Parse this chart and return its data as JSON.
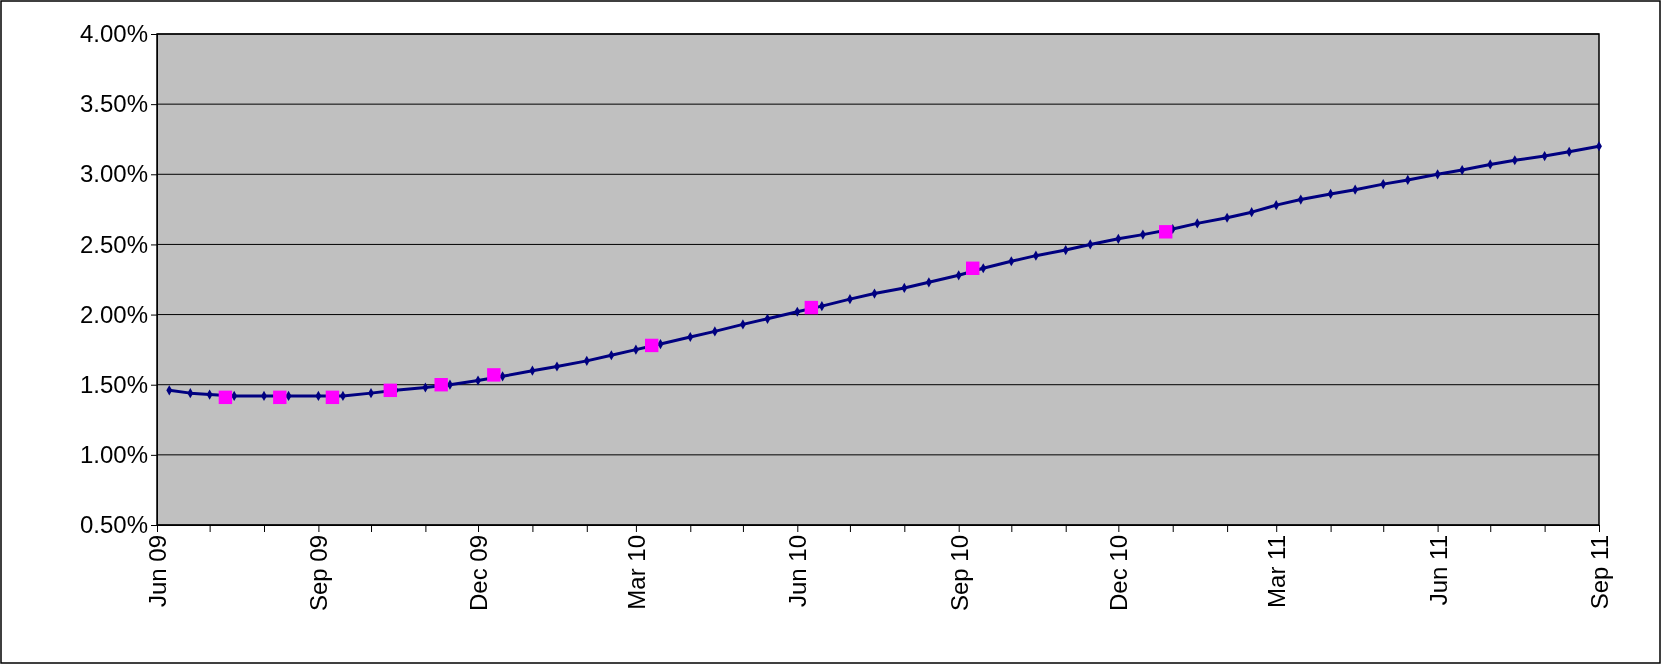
{
  "chart_data": {
    "type": "line",
    "grid": "y",
    "xlim": [
      "2009-06-01",
      "2011-09-01"
    ],
    "xticks": [
      {
        "value": "2009-06-01",
        "label": "Jun 09"
      },
      {
        "value": "2009-07-01",
        "label": null
      },
      {
        "value": "2009-08-01",
        "label": null
      },
      {
        "value": "2009-09-01",
        "label": "Sep 09"
      },
      {
        "value": "2009-10-01",
        "label": null
      },
      {
        "value": "2009-11-01",
        "label": null
      },
      {
        "value": "2009-12-01",
        "label": "Dec 09"
      },
      {
        "value": "2010-01-01",
        "label": null
      },
      {
        "value": "2010-02-01",
        "label": null
      },
      {
        "value": "2010-03-01",
        "label": "Mar 10"
      },
      {
        "value": "2010-04-01",
        "label": null
      },
      {
        "value": "2010-05-01",
        "label": null
      },
      {
        "value": "2010-06-01",
        "label": "Jun 10"
      },
      {
        "value": "2010-07-01",
        "label": null
      },
      {
        "value": "2010-08-01",
        "label": null
      },
      {
        "value": "2010-09-01",
        "label": "Sep 10"
      },
      {
        "value": "2010-10-01",
        "label": null
      },
      {
        "value": "2010-11-01",
        "label": null
      },
      {
        "value": "2010-12-01",
        "label": "Dec 10"
      },
      {
        "value": "2011-01-01",
        "label": null
      },
      {
        "value": "2011-02-01",
        "label": null
      },
      {
        "value": "2011-03-01",
        "label": "Mar 11"
      },
      {
        "value": "2011-04-01",
        "label": null
      },
      {
        "value": "2011-05-01",
        "label": null
      },
      {
        "value": "2011-06-01",
        "label": "Jun 11"
      },
      {
        "value": "2011-07-01",
        "label": null
      },
      {
        "value": "2011-08-01",
        "label": null
      },
      {
        "value": "2011-09-01",
        "label": "Sep 11"
      }
    ],
    "ylim": [
      0.5,
      4.0
    ],
    "yticks": [
      {
        "value": 0.5,
        "label": "0.50%"
      },
      {
        "value": 1.0,
        "label": "1.00%"
      },
      {
        "value": 1.5,
        "label": "1.50%"
      },
      {
        "value": 2.0,
        "label": "2.00%"
      },
      {
        "value": 2.5,
        "label": "2.50%"
      },
      {
        "value": 3.0,
        "label": "3.00%"
      },
      {
        "value": 3.5,
        "label": "3.50%"
      },
      {
        "value": 4.0,
        "label": "4.00%"
      }
    ],
    "series": [
      {
        "type": "line",
        "color": "#000080",
        "marker": "diamond",
        "x": [
          "2009-06-08",
          "2009-06-20",
          "2009-07-01",
          "2009-07-15",
          "2009-08-01",
          "2009-08-15",
          "2009-09-01",
          "2009-09-15",
          "2009-10-01",
          "2009-10-15",
          "2009-11-01",
          "2009-11-15",
          "2009-12-01",
          "2009-12-15",
          "2010-01-01",
          "2010-01-15",
          "2010-02-01",
          "2010-02-15",
          "2010-03-01",
          "2010-03-15",
          "2010-04-01",
          "2010-04-15",
          "2010-05-01",
          "2010-05-15",
          "2010-06-01",
          "2010-06-15",
          "2010-07-01",
          "2010-07-15",
          "2010-08-01",
          "2010-08-15",
          "2010-09-01",
          "2010-09-15",
          "2010-10-01",
          "2010-10-15",
          "2010-11-01",
          "2010-11-15",
          "2010-12-01",
          "2010-12-15",
          "2011-01-01",
          "2011-01-15",
          "2011-02-01",
          "2011-02-15",
          "2011-03-01",
          "2011-03-15",
          "2011-04-01",
          "2011-04-15",
          "2011-05-01",
          "2011-05-15",
          "2011-06-01",
          "2011-06-15",
          "2011-07-01",
          "2011-07-15",
          "2011-08-01",
          "2011-08-15",
          "2011-09-01"
        ],
        "values": [
          1.46,
          1.44,
          1.43,
          1.42,
          1.42,
          1.42,
          1.42,
          1.42,
          1.44,
          1.46,
          1.48,
          1.5,
          1.53,
          1.56,
          1.6,
          1.63,
          1.67,
          1.71,
          1.75,
          1.79,
          1.84,
          1.88,
          1.93,
          1.97,
          2.02,
          2.06,
          2.11,
          2.15,
          2.19,
          2.23,
          2.28,
          2.33,
          2.38,
          2.42,
          2.46,
          2.5,
          2.54,
          2.57,
          2.61,
          2.65,
          2.69,
          2.73,
          2.78,
          2.82,
          2.86,
          2.89,
          2.93,
          2.96,
          3.0,
          3.03,
          3.07,
          3.1,
          3.13,
          3.16,
          3.2
        ]
      },
      {
        "type": "scatter",
        "color": "#ff00ff",
        "marker": "square",
        "x": [
          "2009-07-10",
          "2009-08-10",
          "2009-09-09",
          "2009-10-12",
          "2009-11-10",
          "2009-12-10",
          "2010-03-10",
          "2010-06-09",
          "2010-09-09",
          "2010-12-28"
        ],
        "values": [
          1.41,
          1.41,
          1.41,
          1.46,
          1.5,
          1.57,
          1.78,
          2.05,
          2.33,
          2.59
        ]
      }
    ]
  }
}
